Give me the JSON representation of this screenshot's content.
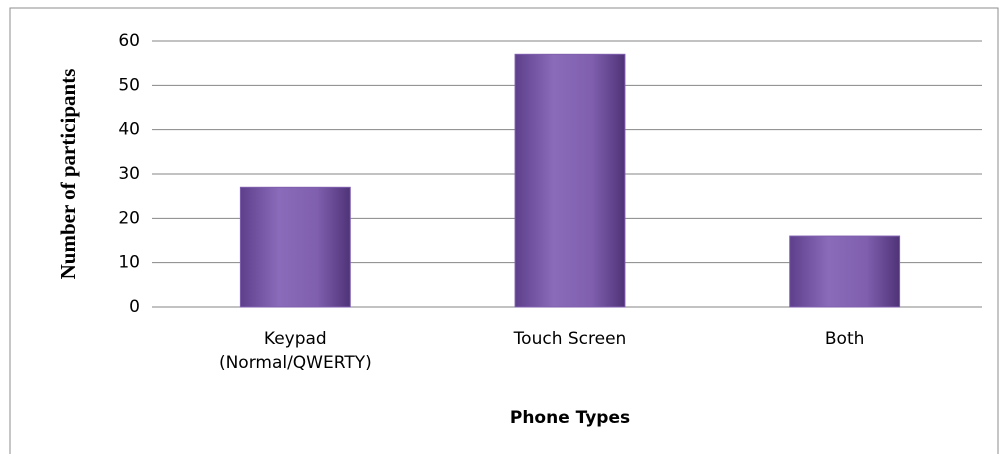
{
  "chart_data": {
    "type": "bar",
    "categories": [
      "Keypad (Normal/QWERTY)",
      "Touch Screen",
      "Both"
    ],
    "values": [
      27,
      57,
      16
    ],
    "color": "#7f5fae",
    "ylim": [
      0,
      60
    ],
    "yticks": [
      0,
      10,
      20,
      30,
      40,
      50,
      60
    ],
    "grid": true,
    "ylabel": "Number of participants",
    "xlabel": "Phone Types"
  }
}
